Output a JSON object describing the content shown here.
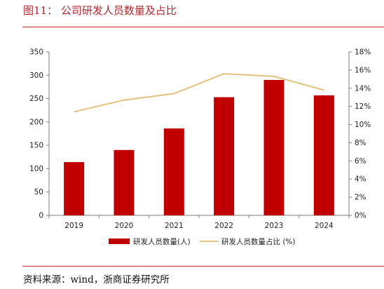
{
  "figure": {
    "title": "图11： 公司研发人员数量及占比",
    "source": "资料来源：wind，浙商证券研究所"
  },
  "chart_data": {
    "type": "bar",
    "categories": [
      "2019",
      "2020",
      "2021",
      "2022",
      "2023",
      "2024"
    ],
    "series": [
      {
        "name": "研发人员数量(人)",
        "type": "bar",
        "axis": "left",
        "values": [
          114,
          140,
          186,
          253,
          290,
          257
        ],
        "color": "#c00000"
      },
      {
        "name": "研发人员数量占比 (%)",
        "type": "line",
        "axis": "right",
        "values": [
          11.4,
          12.7,
          13.4,
          15.6,
          15.3,
          13.8
        ],
        "color": "#e3c27f"
      }
    ],
    "y_left": {
      "min": 0,
      "max": 350,
      "ticks": [
        "0",
        "50",
        "100",
        "150",
        "200",
        "250",
        "300",
        "350"
      ]
    },
    "y_right": {
      "min": 0,
      "max": 18,
      "ticks": [
        "0%",
        "2%",
        "4%",
        "6%",
        "8%",
        "10%",
        "12%",
        "14%",
        "16%",
        "18%"
      ]
    },
    "grid": false,
    "legend": "bottom"
  }
}
